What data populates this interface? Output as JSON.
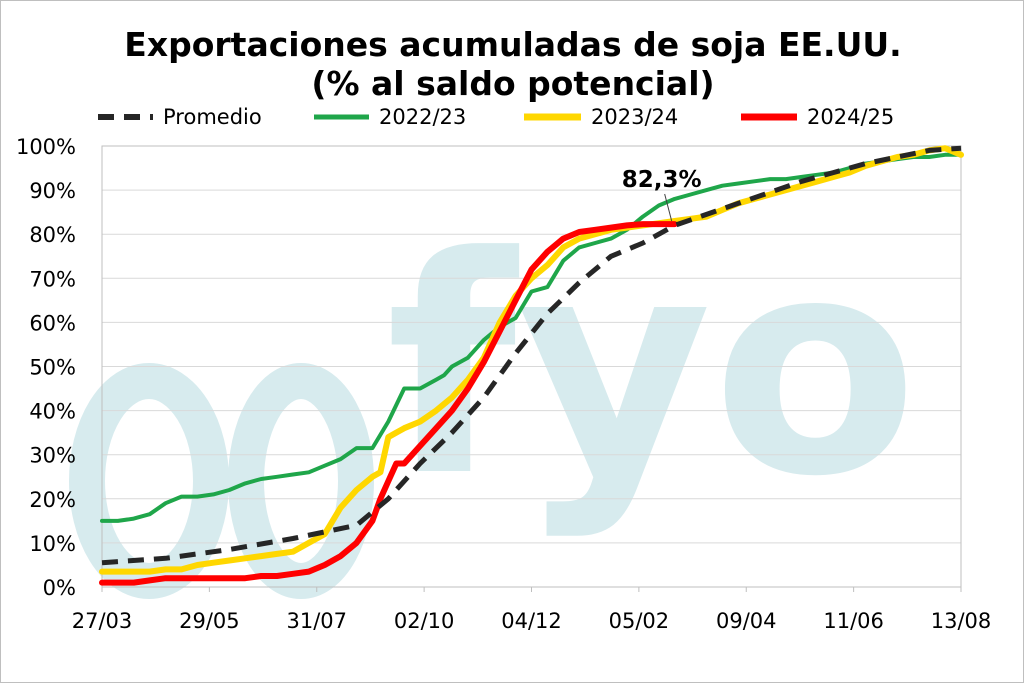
{
  "chart_data": {
    "type": "line",
    "title_line1": "Exportaciones acumuladas de soja EE.UU.",
    "title_line2": "(% al saldo potencial)",
    "watermark": "fyo",
    "xlabel": "",
    "ylabel": "",
    "ylim": [
      0,
      100
    ],
    "yticks": [
      "0%",
      "10%",
      "20%",
      "30%",
      "40%",
      "50%",
      "60%",
      "70%",
      "80%",
      "90%",
      "100%"
    ],
    "x_tick_labels": [
      "27/03",
      "29/05",
      "31/07",
      "02/10",
      "04/12",
      "05/02",
      "09/04",
      "11/06",
      "13/08"
    ],
    "grid": true,
    "legend_position": "top",
    "annotation": {
      "text": "82,3%",
      "x": 36,
      "y": 82.3
    },
    "series": [
      {
        "name": "Promedio",
        "color": "#262626",
        "dash": true,
        "x": [
          0,
          4,
          8,
          12,
          16,
          18,
          20,
          22,
          24,
          26,
          28,
          30,
          32,
          34,
          36,
          38,
          40,
          42,
          44,
          46,
          48,
          50,
          52,
          54
        ],
        "values": [
          5.5,
          6.5,
          8.5,
          11,
          14,
          20,
          28,
          35,
          43,
          53,
          62,
          69,
          75,
          78,
          82,
          84.5,
          87,
          89.5,
          92,
          94,
          96,
          97.5,
          99,
          99.5
        ]
      },
      {
        "name": "2022/23",
        "color": "#1fa64a",
        "dash": false,
        "x": [
          0,
          1,
          2,
          3,
          4,
          5,
          6,
          7,
          8,
          9,
          10,
          11,
          12,
          13,
          14,
          15,
          16,
          17,
          18,
          19,
          20,
          20.5,
          21,
          21.5,
          22,
          23,
          24,
          25,
          26,
          27,
          28,
          29,
          30,
          31,
          32,
          33,
          34,
          35,
          36,
          37,
          38,
          39,
          40,
          41,
          42,
          43,
          44,
          45,
          46,
          47,
          48,
          49,
          50,
          51,
          52,
          53,
          54
        ],
        "values": [
          15,
          15,
          15.5,
          16.5,
          19,
          20.5,
          20.5,
          21,
          22,
          23.5,
          24.5,
          25,
          25.5,
          26,
          27.5,
          29,
          31.5,
          31.5,
          37.5,
          45,
          45,
          46,
          47,
          48,
          50,
          52,
          56,
          59,
          61,
          67,
          68,
          74,
          77,
          78,
          79,
          81,
          84,
          86.5,
          88,
          89,
          90,
          91,
          91.5,
          92,
          92.5,
          92.5,
          93,
          93.5,
          94,
          95,
          96,
          96.5,
          97,
          97.5,
          97.5,
          98,
          98
        ]
      },
      {
        "name": "2023/24",
        "color": "#ffd700",
        "dash": false,
        "x": [
          0,
          1,
          2,
          3,
          4,
          5,
          6,
          7,
          8,
          9,
          10,
          11,
          12,
          13,
          14,
          15,
          16,
          17,
          17.5,
          18,
          18.5,
          19,
          20,
          21,
          22,
          23,
          24,
          25,
          26,
          27,
          28,
          29,
          30,
          31,
          32,
          33,
          34,
          35,
          36,
          37,
          38,
          39,
          40,
          41,
          42,
          43,
          44,
          45,
          46,
          47,
          48,
          49,
          50,
          51,
          52,
          53,
          54
        ],
        "values": [
          3.5,
          3.5,
          3.5,
          3.5,
          4,
          4,
          5,
          5.5,
          6,
          6.5,
          7,
          7.5,
          8,
          10,
          12,
          18,
          22,
          25,
          26,
          34,
          35,
          36,
          37.5,
          40,
          43,
          47,
          52,
          60,
          66,
          70,
          73,
          77,
          79,
          80,
          81,
          81.5,
          82,
          82.5,
          83,
          83.5,
          84,
          85.5,
          87,
          88,
          89,
          90,
          91,
          92,
          93,
          94,
          95.5,
          96.5,
          97.5,
          98,
          99,
          99.5,
          98
        ]
      },
      {
        "name": "2024/25",
        "color": "#ff0000",
        "dash": false,
        "x": [
          0,
          1,
          2,
          3,
          4,
          5,
          6,
          7,
          8,
          9,
          10,
          11,
          12,
          13,
          14,
          15,
          16,
          17,
          17.5,
          18,
          18.5,
          19,
          20,
          21,
          22,
          23,
          24,
          25,
          26,
          27,
          28,
          29,
          30,
          31,
          32,
          33,
          34,
          35,
          36
        ],
        "values": [
          1,
          1,
          1,
          1.5,
          2,
          2,
          2,
          2,
          2,
          2,
          2.5,
          2.5,
          3,
          3.5,
          5,
          7,
          10,
          15,
          20,
          24,
          28,
          28,
          32,
          36,
          40,
          45,
          51,
          58,
          65,
          72,
          76,
          79,
          80.5,
          81,
          81.5,
          82,
          82.3,
          82.3,
          82.3
        ]
      }
    ]
  }
}
